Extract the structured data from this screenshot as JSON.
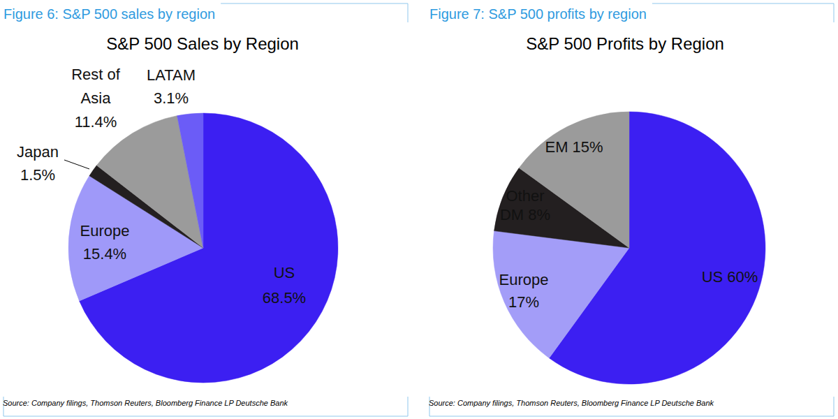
{
  "chart_data": [
    {
      "type": "pie",
      "caption": "Figure 6: S&P 500 sales by region",
      "title": "S&P 500 Sales by Region",
      "categories": [
        "US",
        "Europe",
        "Japan",
        "Rest of Asia",
        "LATAM"
      ],
      "values": [
        68.5,
        15.4,
        1.5,
        11.4,
        3.1
      ],
      "value_labels": [
        "68.5%",
        "15.4%",
        "1.5%",
        "11.4%",
        "3.1%"
      ],
      "colors": [
        "#3c1ff2",
        "#9f99f9",
        "#231f20",
        "#9b9b9b",
        "#6b5cf7"
      ],
      "data_labels": true,
      "source": "Source: Company filings, Thomson Reuters, Bloomberg Finance LP Deutsche Bank"
    },
    {
      "type": "pie",
      "caption": "Figure 7: S&P 500 profits by region",
      "title": "S&P 500 Profits by Region",
      "categories": [
        "US",
        "Europe",
        "Other DM",
        "EM"
      ],
      "values": [
        60,
        17,
        8,
        15
      ],
      "value_labels": [
        "60%",
        "17%",
        "8%",
        "15%"
      ],
      "colors": [
        "#3c1ff2",
        "#a39df8",
        "#231f20",
        "#9b9b9b"
      ],
      "data_labels": true,
      "source": "Source: Company filings, Thomson Reuters, Bloomberg Finance LP Deutsche Bank"
    }
  ]
}
